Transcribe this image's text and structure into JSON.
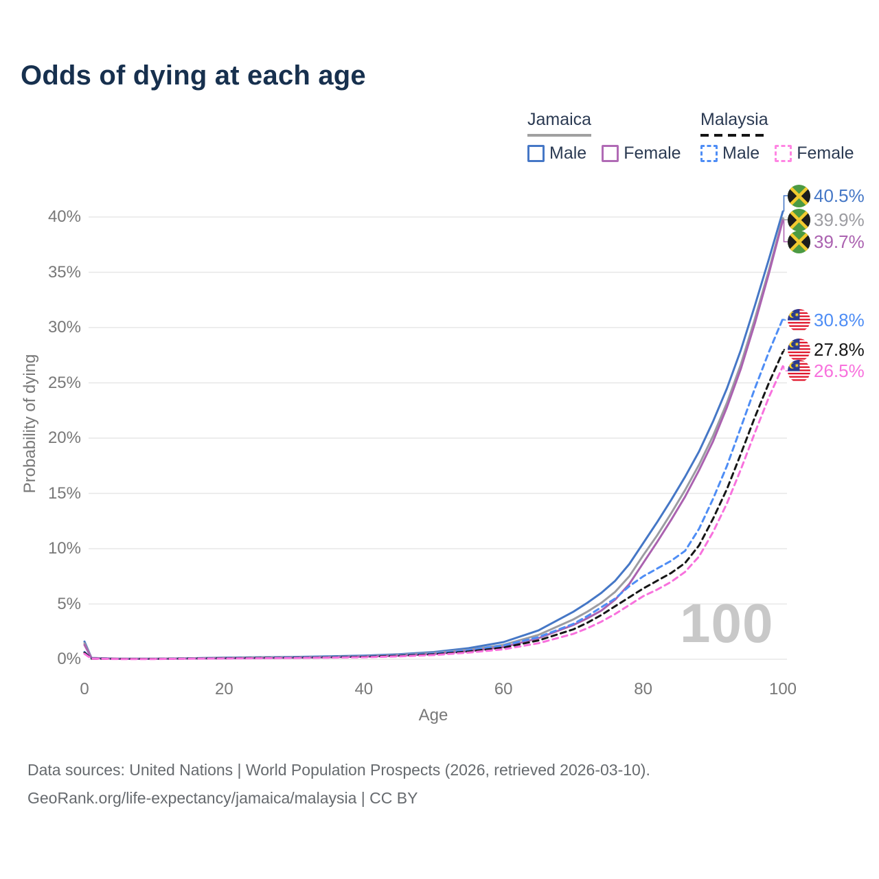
{
  "header": {
    "title": "Odds of dying at each age"
  },
  "legend": {
    "groups": [
      {
        "label": "Jamaica",
        "line_style": "solid",
        "underline_color": "#a0a0a0",
        "items": [
          {
            "label": "Male",
            "color": "#4577c6"
          },
          {
            "label": "Female",
            "color": "#b06ab5"
          }
        ]
      },
      {
        "label": "Malaysia",
        "line_style": "dashed",
        "underline_color": "#141414",
        "items": [
          {
            "label": "Male",
            "color": "#4e8df5"
          },
          {
            "label": "Female",
            "color": "#ff85e3"
          }
        ]
      }
    ]
  },
  "chart_data": {
    "type": "line",
    "title": "Odds of dying at each age",
    "xlabel": "Age",
    "ylabel": "Probability of dying",
    "xlim": [
      0,
      100
    ],
    "ylim_percent": [
      0,
      42
    ],
    "grid": "horizontal",
    "legend_position": "top-right",
    "age_watermark": "100",
    "x_ticks": [
      {
        "value": 0,
        "label": "0"
      },
      {
        "value": 20,
        "label": "20"
      },
      {
        "value": 40,
        "label": "40"
      },
      {
        "value": 60,
        "label": "60"
      },
      {
        "value": 80,
        "label": "80"
      },
      {
        "value": 100,
        "label": "100"
      }
    ],
    "y_ticks": [
      {
        "value": 0,
        "label": "0%"
      },
      {
        "value": 5,
        "label": "5%"
      },
      {
        "value": 10,
        "label": "10%"
      },
      {
        "value": 15,
        "label": "15%"
      },
      {
        "value": 20,
        "label": "20%"
      },
      {
        "value": 25,
        "label": "25%"
      },
      {
        "value": 30,
        "label": "30%"
      },
      {
        "value": 35,
        "label": "35%"
      },
      {
        "value": 40,
        "label": "40%"
      }
    ],
    "ages": [
      0,
      1,
      5,
      10,
      15,
      20,
      25,
      30,
      35,
      40,
      45,
      50,
      55,
      60,
      65,
      70,
      72,
      74,
      76,
      78,
      80,
      82,
      84,
      86,
      88,
      90,
      92,
      94,
      96,
      98,
      100
    ],
    "series": [
      {
        "name": "Jamaica Male",
        "country": "Jamaica",
        "sex": "Male",
        "style": "solid",
        "color": "#4577c6",
        "end_label": "40.5%",
        "flag_icon": "jamaica-flag-icon",
        "values_percent": [
          1.6,
          0.12,
          0.05,
          0.05,
          0.09,
          0.15,
          0.18,
          0.21,
          0.26,
          0.33,
          0.45,
          0.65,
          1.0,
          1.55,
          2.6,
          4.3,
          5.1,
          6.0,
          7.1,
          8.6,
          10.5,
          12.4,
          14.4,
          16.5,
          18.8,
          21.5,
          24.5,
          28.0,
          32.0,
          36.2,
          40.5
        ]
      },
      {
        "name": "Jamaica Both sexes",
        "country": "Jamaica",
        "sex": "Both",
        "style": "solid",
        "color": "#9c9ca1",
        "end_label": "39.9%",
        "flag_icon": "jamaica-flag-icon",
        "values_percent": [
          1.45,
          0.11,
          0.04,
          0.04,
          0.08,
          0.13,
          0.16,
          0.18,
          0.22,
          0.28,
          0.4,
          0.57,
          0.85,
          1.3,
          2.2,
          3.6,
          4.3,
          5.1,
          6.1,
          7.5,
          9.4,
          11.2,
          13.2,
          15.3,
          17.6,
          20.2,
          23.2,
          26.7,
          30.8,
          35.2,
          39.9
        ]
      },
      {
        "name": "Jamaica Female",
        "country": "Jamaica",
        "sex": "Female",
        "style": "solid",
        "color": "#ab62b0",
        "end_label": "39.7%",
        "flag_icon": "jamaica-flag-icon",
        "values_percent": [
          1.3,
          0.1,
          0.04,
          0.04,
          0.06,
          0.09,
          0.11,
          0.14,
          0.18,
          0.24,
          0.33,
          0.48,
          0.73,
          1.1,
          1.9,
          3.1,
          3.7,
          4.4,
          5.4,
          6.8,
          8.7,
          10.6,
          12.6,
          14.7,
          17.1,
          19.7,
          22.8,
          26.3,
          30.4,
          34.9,
          39.7
        ]
      },
      {
        "name": "Malaysia Male",
        "country": "Malaysia",
        "sex": "Male",
        "style": "dashed",
        "color": "#4e8df5",
        "end_label": "30.8%",
        "flag_icon": "malaysia-flag-icon",
        "values_percent": [
          0.65,
          0.06,
          0.03,
          0.03,
          0.07,
          0.11,
          0.13,
          0.16,
          0.2,
          0.26,
          0.36,
          0.53,
          0.82,
          1.25,
          2.0,
          3.2,
          3.9,
          4.7,
          5.5,
          6.6,
          7.5,
          8.2,
          8.9,
          9.8,
          11.8,
          14.5,
          17.5,
          21.0,
          24.5,
          27.8,
          30.8
        ]
      },
      {
        "name": "Malaysia Both sexes",
        "country": "Malaysia",
        "sex": "Both",
        "style": "dashed",
        "color": "#161616",
        "end_label": "27.8%",
        "flag_icon": "malaysia-flag-icon",
        "values_percent": [
          0.6,
          0.05,
          0.03,
          0.03,
          0.06,
          0.09,
          0.11,
          0.13,
          0.17,
          0.22,
          0.31,
          0.45,
          0.7,
          1.05,
          1.7,
          2.7,
          3.3,
          4.0,
          4.8,
          5.6,
          6.4,
          7.1,
          7.8,
          8.7,
          10.3,
          12.7,
          15.4,
          18.6,
          21.9,
          25.0,
          27.8
        ]
      },
      {
        "name": "Malaysia Female",
        "country": "Malaysia",
        "sex": "Female",
        "style": "dashed",
        "color": "#f871dd",
        "end_label": "26.5%",
        "flag_icon": "malaysia-flag-icon",
        "values_percent": [
          0.5,
          0.05,
          0.02,
          0.02,
          0.05,
          0.07,
          0.09,
          0.11,
          0.14,
          0.18,
          0.26,
          0.38,
          0.6,
          0.9,
          1.45,
          2.3,
          2.8,
          3.4,
          4.1,
          4.9,
          5.7,
          6.3,
          7.0,
          7.9,
          9.3,
          11.5,
          14.1,
          17.2,
          20.5,
          23.7,
          26.5
        ]
      }
    ]
  },
  "footer": {
    "line1": "Data sources: United Nations | World Population Prospects (2026, retrieved 2026-03-10).",
    "line2": "GeoRank.org/life-expectancy/jamaica/malaysia | CC BY"
  }
}
